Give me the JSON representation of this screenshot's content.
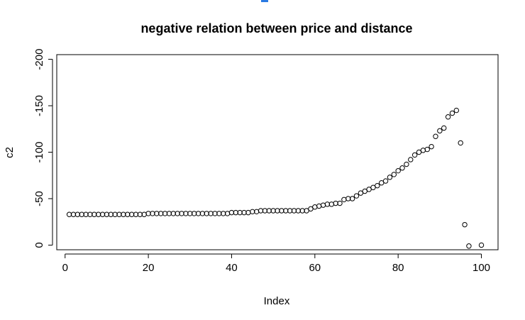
{
  "chart_data": {
    "type": "scatter",
    "title": "negative relation between price and distance",
    "xlabel": "Index",
    "ylabel": "c2",
    "xlim": [
      -2,
      104
    ],
    "ylim": [
      5,
      -205
    ],
    "x_ticks": [
      0,
      20,
      40,
      60,
      80,
      100
    ],
    "y_ticks": [
      0,
      -50,
      -100,
      -150,
      -200
    ],
    "y_tick_labels_rotated": true,
    "grid": false,
    "legend": "none",
    "marker": "open-circle",
    "marker_color": "#000000",
    "x": [
      1,
      2,
      3,
      4,
      5,
      6,
      7,
      8,
      9,
      10,
      11,
      12,
      13,
      14,
      15,
      16,
      17,
      18,
      19,
      20,
      21,
      22,
      23,
      24,
      25,
      26,
      27,
      28,
      29,
      30,
      31,
      32,
      33,
      34,
      35,
      36,
      37,
      38,
      39,
      40,
      41,
      42,
      43,
      44,
      45,
      46,
      47,
      48,
      49,
      50,
      51,
      52,
      53,
      54,
      55,
      56,
      57,
      58,
      59,
      60,
      61,
      62,
      63,
      64,
      65,
      66,
      67,
      68,
      69,
      70,
      71,
      72,
      73,
      74,
      75,
      76,
      77,
      78,
      79,
      80,
      81,
      82,
      83,
      84,
      85,
      86,
      87,
      88,
      89,
      90,
      91,
      92,
      93,
      94,
      95,
      96,
      97,
      98,
      99,
      100
    ],
    "y": [
      -33,
      -33,
      -33,
      -33,
      -33,
      -33,
      -33,
      -33,
      -33,
      -33,
      -33,
      -33,
      -33,
      -33,
      -33,
      -33,
      -33,
      -33,
      -33,
      -34,
      -34,
      -34,
      -34,
      -34,
      -34,
      -34,
      -34,
      -34,
      -34,
      -34,
      -34,
      -34,
      -34,
      -34,
      -34,
      -34,
      -34,
      -34,
      -34,
      -35,
      -35,
      -35,
      -35,
      -35,
      -36,
      -36,
      -37,
      -37,
      -37,
      -37,
      -37,
      -37,
      -37,
      -37,
      -37,
      -37,
      -37,
      -37,
      -39,
      -41,
      -42,
      -43,
      -44,
      -44,
      -45,
      -45,
      -49,
      -50,
      -50,
      -53,
      -56,
      -58,
      -60,
      -62,
      -64,
      -67,
      -69,
      -73,
      -76,
      -80,
      -83,
      -87,
      -92,
      -97,
      -100,
      -102,
      -103,
      -106,
      -117,
      -123,
      -126,
      -138,
      -142,
      -145,
      -110,
      -22,
      1,
      null,
      null,
      0
    ]
  },
  "decor": {
    "accent_color": "#2a7ae2"
  }
}
